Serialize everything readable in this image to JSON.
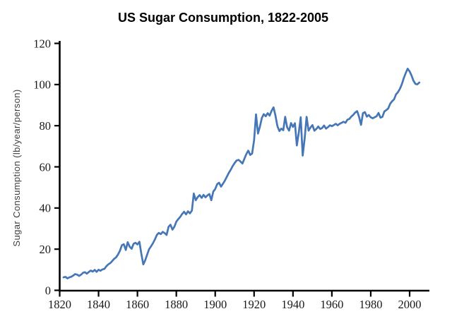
{
  "title": "US Sugar Consumption, 1822-2005",
  "colors": {
    "background": "#ffffff",
    "line": "#4576b5",
    "axis": "#000000",
    "tick_label": "#1a1a1a",
    "axis_title": "#3f3f3f"
  },
  "chart_data": {
    "type": "line",
    "title": "US Sugar Consumption, 1822-2005",
    "xlabel": "",
    "ylabel": "Sugar Consumption (lb/year/person)",
    "xlim": [
      1820,
      2010
    ],
    "ylim": [
      0,
      120
    ],
    "x_ticks": [
      1820,
      1840,
      1860,
      1880,
      1900,
      1920,
      1940,
      1960,
      1980,
      2000
    ],
    "y_ticks": [
      0,
      20,
      40,
      60,
      80,
      100,
      120
    ],
    "grid": false,
    "legend_position": "none",
    "series": [
      {
        "name": "US sugar consumption",
        "x_start_year": 1822,
        "x_end_year": 2005,
        "x_step": 1,
        "values": [
          6.3,
          6.5,
          5.8,
          6.3,
          6.6,
          7.2,
          7.9,
          7.6,
          7.0,
          7.6,
          8.5,
          8.8,
          8.1,
          8.9,
          9.6,
          9.1,
          9.9,
          9.0,
          10.0,
          9.5,
          10.2,
          10.4,
          11.7,
          12.6,
          13.2,
          14.2,
          15.3,
          16.0,
          17.4,
          19.2,
          21.9,
          22.4,
          19.6,
          23.4,
          21.2,
          20.2,
          22.6,
          23.1,
          22.3,
          23.6,
          17.8,
          12.6,
          14.6,
          17.4,
          20.0,
          21.4,
          22.9,
          24.8,
          26.9,
          27.9,
          27.3,
          28.4,
          27.8,
          26.9,
          30.9,
          31.9,
          29.5,
          30.9,
          33.4,
          34.6,
          35.7,
          37.1,
          38.2,
          36.9,
          38.4,
          37.4,
          38.7,
          47.0,
          43.8,
          45.3,
          46.3,
          44.9,
          46.4,
          45.2,
          46.1,
          46.8,
          43.8,
          48.0,
          49.2,
          51.6,
          52.3,
          50.4,
          51.8,
          53.4,
          55.2,
          57.1,
          58.6,
          60.4,
          61.9,
          63.1,
          63.4,
          62.6,
          61.6,
          63.9,
          66.2,
          67.9,
          65.8,
          66.5,
          73.0,
          85.5,
          76.2,
          79.5,
          83.8,
          85.6,
          84.6,
          86.1,
          84.9,
          87.3,
          88.9,
          84.8,
          79.8,
          77.4,
          78.6,
          77.8,
          84.3,
          79.2,
          77.6,
          81.3,
          79.4,
          81.2,
          70.4,
          76.8,
          84.1,
          65.5,
          73.8,
          84.3,
          77.6,
          79.1,
          80.3,
          77.6,
          78.4,
          79.6,
          78.4,
          78.9,
          80.1,
          78.6,
          79.3,
          80.2,
          79.8,
          80.3,
          80.9,
          80.2,
          80.9,
          81.4,
          81.9,
          81.4,
          82.9,
          83.3,
          84.4,
          85.3,
          86.4,
          87.1,
          84.3,
          80.4,
          86.1,
          86.6,
          84.4,
          85.2,
          84.1,
          83.6,
          84.1,
          84.6,
          86.2,
          83.9,
          84.3,
          86.9,
          87.6,
          88.4,
          90.7,
          91.9,
          92.8,
          95.2,
          96.3,
          97.9,
          100.2,
          103.1,
          105.6,
          107.7,
          106.4,
          104.3,
          101.8,
          100.3,
          100.1,
          101.0
        ]
      }
    ]
  }
}
